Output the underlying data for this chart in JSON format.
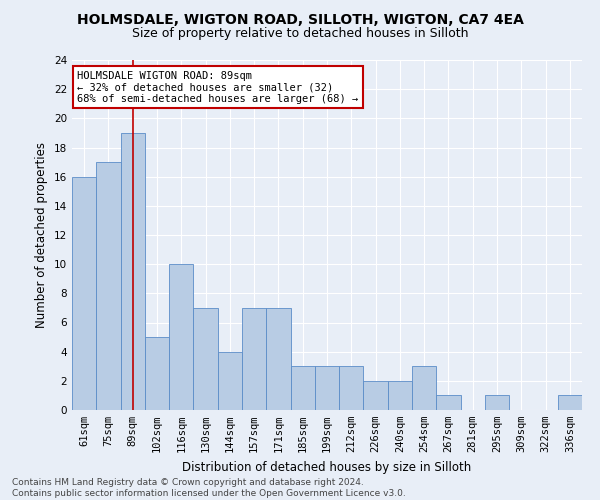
{
  "title1": "HOLMSDALE, WIGTON ROAD, SILLOTH, WIGTON, CA7 4EA",
  "title2": "Size of property relative to detached houses in Silloth",
  "xlabel": "Distribution of detached houses by size in Silloth",
  "ylabel": "Number of detached properties",
  "categories": [
    "61sqm",
    "75sqm",
    "89sqm",
    "102sqm",
    "116sqm",
    "130sqm",
    "144sqm",
    "157sqm",
    "171sqm",
    "185sqm",
    "199sqm",
    "212sqm",
    "226sqm",
    "240sqm",
    "254sqm",
    "267sqm",
    "281sqm",
    "295sqm",
    "309sqm",
    "322sqm",
    "336sqm"
  ],
  "values": [
    16,
    17,
    19,
    5,
    10,
    7,
    4,
    7,
    7,
    3,
    3,
    3,
    2,
    2,
    3,
    1,
    0,
    1,
    0,
    0,
    1
  ],
  "bar_color": "#b8cce4",
  "bar_edge_color": "#5b8cc8",
  "highlight_index": 2,
  "highlight_line_color": "#c00000",
  "annotation_line1": "HOLMSDALE WIGTON ROAD: 89sqm",
  "annotation_line2": "← 32% of detached houses are smaller (32)",
  "annotation_line3": "68% of semi-detached houses are larger (68) →",
  "annotation_box_color": "#ffffff",
  "annotation_box_edge": "#c00000",
  "ylim": [
    0,
    24
  ],
  "yticks": [
    0,
    2,
    4,
    6,
    8,
    10,
    12,
    14,
    16,
    18,
    20,
    22,
    24
  ],
  "footer": "Contains HM Land Registry data © Crown copyright and database right 2024.\nContains public sector information licensed under the Open Government Licence v3.0.",
  "background_color": "#e8eef7",
  "grid_color": "#ffffff",
  "title1_fontsize": 10,
  "title2_fontsize": 9,
  "xlabel_fontsize": 8.5,
  "ylabel_fontsize": 8.5,
  "tick_fontsize": 7.5,
  "annotation_fontsize": 7.5,
  "footer_fontsize": 6.5
}
